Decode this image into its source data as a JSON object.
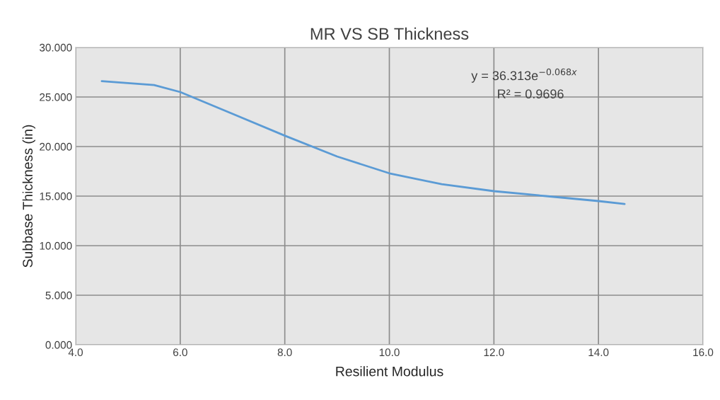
{
  "chart_data": {
    "type": "line",
    "title": "MR VS SB Thickness",
    "xlabel": "Resilient Modulus",
    "ylabel": "Subbase Thickness (in)",
    "annotations": [
      "y = 36.313e$^{−0.068x}$",
      "R² = 0.9696"
    ],
    "series": [
      {
        "color": "#5b9bd5",
        "x": [
          4.5,
          5.0,
          5.5,
          6.0,
          7.0,
          8.0,
          9.0,
          10.0,
          11.0,
          12.0,
          13.0,
          14.0,
          14.5
        ],
        "values": [
          26.6,
          26.4,
          26.2,
          25.5,
          23.3,
          21.1,
          19.0,
          17.3,
          16.2,
          15.5,
          15.0,
          14.5,
          14.2
        ]
      }
    ],
    "xlim": [
      4,
      16
    ],
    "xticks": [
      {
        "value": 4,
        "label": "4.0"
      },
      {
        "value": 6,
        "label": "6.0"
      },
      {
        "value": 8,
        "label": "8.0"
      },
      {
        "value": 10,
        "label": "10.0"
      },
      {
        "value": 12,
        "label": "12.0"
      },
      {
        "value": 14,
        "label": "14.0"
      },
      {
        "value": 16,
        "label": "16.0"
      }
    ],
    "ylim": [
      0,
      30
    ],
    "yticks": [
      {
        "value": 0,
        "label": "0.000"
      },
      {
        "value": 5,
        "label": "5.000"
      },
      {
        "value": 10,
        "label": "10.000"
      },
      {
        "value": 15,
        "label": "15.000"
      },
      {
        "value": 20,
        "label": "20.000"
      },
      {
        "value": 25,
        "label": "25.000"
      },
      {
        "value": 30,
        "label": "30.000"
      }
    ],
    "grid": true,
    "legend": false
  }
}
